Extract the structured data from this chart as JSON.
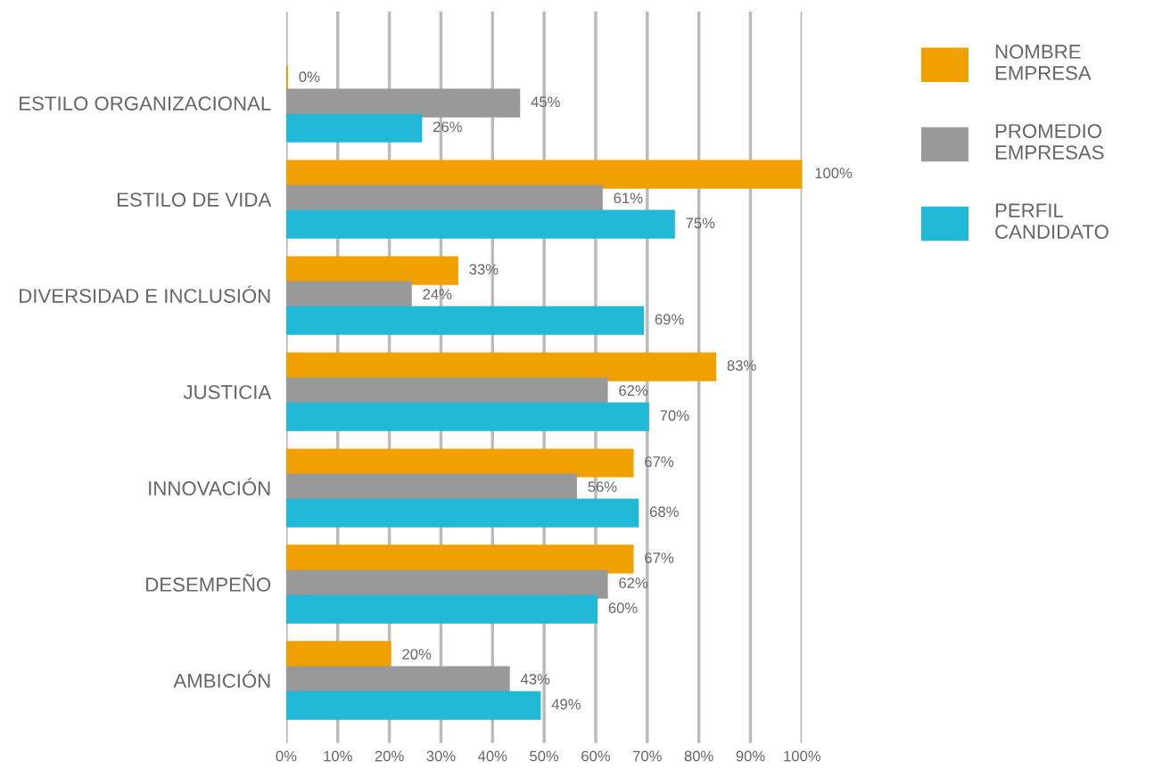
{
  "chart_data": {
    "type": "bar",
    "orientation": "horizontal",
    "categories": [
      "ESTILO ORGANIZACIONAL",
      "ESTILO DE VIDA",
      "DIVERSIDAD E INCLUSIÓN",
      "JUSTICIA",
      "INNOVACIÓN",
      "DESEMPEÑO",
      "AMBICIÓN"
    ],
    "series": [
      {
        "name": "NOMBRE\nEMPRESA",
        "color": "#f0a000",
        "values": [
          0,
          100,
          33,
          83,
          67,
          67,
          20
        ],
        "value_labels": [
          "0%",
          "100%",
          "33%",
          "83%",
          "67%",
          "67%",
          "20%"
        ]
      },
      {
        "name": "PROMEDIO\nEMPRESAS",
        "color": "#999999",
        "values": [
          45,
          61,
          24,
          62,
          56,
          62,
          43
        ],
        "value_labels": [
          "45%",
          "61%",
          "24%",
          "62%",
          "56%",
          "62%",
          "43%"
        ]
      },
      {
        "name": "PERFIL\nCANDIDATO",
        "color": "#22b8d8",
        "values": [
          26,
          75,
          69,
          70,
          68,
          60,
          49
        ],
        "value_labels": [
          "26%",
          "75%",
          "69%",
          "70%",
          "68%",
          "60%",
          "49%"
        ]
      }
    ],
    "xlim": [
      0,
      100
    ],
    "xticks": [
      {
        "value": 0,
        "label": "0%"
      },
      {
        "value": 10,
        "label": "10%"
      },
      {
        "value": 20,
        "label": "20%"
      },
      {
        "value": 30,
        "label": "30%"
      },
      {
        "value": 40,
        "label": "40%"
      },
      {
        "value": 50,
        "label": "50%"
      },
      {
        "value": 60,
        "label": "60%"
      },
      {
        "value": 70,
        "label": "70%"
      },
      {
        "value": 80,
        "label": "80%"
      },
      {
        "value": 90,
        "label": "90%"
      },
      {
        "value": 100,
        "label": "100%"
      }
    ],
    "grid": "x",
    "legend": "top right"
  }
}
